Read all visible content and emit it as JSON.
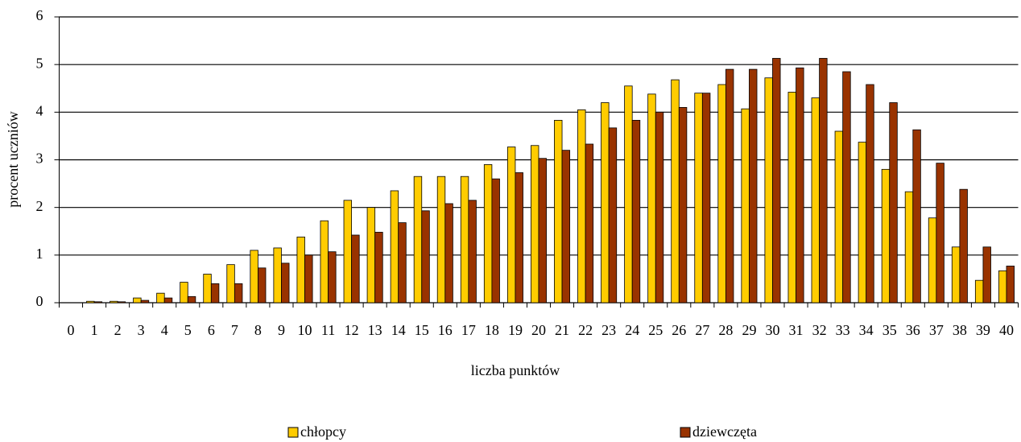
{
  "chart_data": {
    "type": "bar",
    "categories": [
      "0",
      "1",
      "2",
      "3",
      "4",
      "5",
      "6",
      "7",
      "8",
      "9",
      "10",
      "11",
      "12",
      "13",
      "14",
      "15",
      "16",
      "17",
      "18",
      "19",
      "20",
      "21",
      "22",
      "23",
      "24",
      "25",
      "26",
      "27",
      "28",
      "29",
      "30",
      "31",
      "32",
      "33",
      "34",
      "35",
      "36",
      "37",
      "38",
      "39",
      "40"
    ],
    "series": [
      {
        "name": "chłopcy",
        "color": "#ffcc00",
        "values": [
          0,
          0.03,
          0.03,
          0.1,
          0.2,
          0.43,
          0.6,
          0.8,
          1.1,
          1.15,
          1.38,
          1.72,
          2.15,
          2.0,
          2.35,
          2.65,
          2.65,
          2.65,
          2.9,
          3.27,
          3.3,
          3.83,
          4.05,
          4.2,
          4.55,
          4.38,
          4.68,
          4.4,
          4.58,
          4.07,
          4.72,
          4.42,
          4.3,
          3.6,
          3.37,
          2.8,
          2.33,
          1.78,
          1.17,
          0.47,
          0.67
        ]
      },
      {
        "name": "dziewczęta",
        "color": "#993300",
        "values": [
          0,
          0.02,
          0.02,
          0.05,
          0.1,
          0.13,
          0.4,
          0.4,
          0.73,
          0.83,
          1.0,
          1.07,
          1.42,
          1.48,
          1.68,
          1.93,
          2.08,
          2.15,
          2.6,
          2.73,
          3.03,
          3.2,
          3.33,
          3.67,
          3.83,
          4.0,
          4.1,
          4.4,
          4.9,
          4.9,
          5.13,
          4.93,
          5.13,
          4.85,
          4.58,
          4.2,
          3.63,
          2.93,
          2.38,
          1.17,
          0.77
        ]
      }
    ],
    "x_label": "liczba punktów",
    "y_label": "procent uczniów",
    "ylim": [
      0,
      6
    ],
    "yticks": [
      0,
      1,
      2,
      3,
      4,
      5,
      6
    ],
    "grid": true,
    "legend": "bottom"
  }
}
